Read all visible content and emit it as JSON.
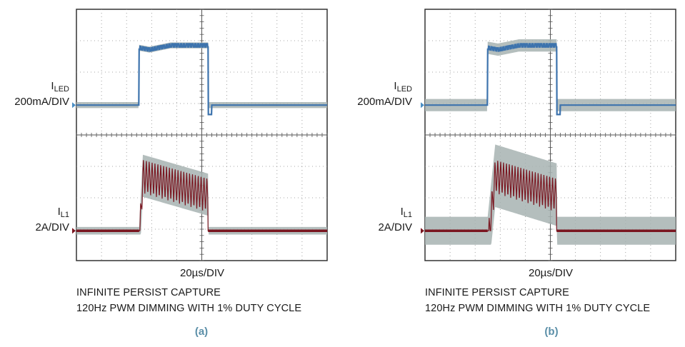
{
  "colors": {
    "led_trace": "#3d73ad",
    "inductor_trace": "#7a1620",
    "persist_envelope": "#a7b3b1",
    "grid": "#8a8a8a",
    "marker": "#4b8fc4"
  },
  "panels": [
    {
      "tag": "(a)",
      "ch1_label": "I",
      "ch1_sub": "LED",
      "ch1_scale": "200mA/DIV",
      "ch2_label": "I",
      "ch2_sub": "L1",
      "ch2_scale": "2A/DIV",
      "timebase": "20µs/DIV",
      "caption_line1": "INFINITE PERSIST CAPTURE",
      "caption_line2": "120Hz PWM DIMMING WITH 1% DUTY CYCLE"
    },
    {
      "tag": "(b)",
      "ch1_label": "I",
      "ch1_sub": "LED",
      "ch1_scale": "200mA/DIV",
      "ch2_label": "I",
      "ch2_sub": "L1",
      "ch2_scale": "2A/DIV",
      "timebase": "20µs/DIV",
      "caption_line1": "INFINITE PERSIST CAPTURE",
      "caption_line2": "120Hz PWM DIMMING WITH 1% DUTY CYCLE"
    }
  ],
  "chart_data": [
    {
      "type": "line",
      "x_unit": "µs",
      "x_range": [
        0,
        200
      ],
      "y_range_div": [
        -4,
        4
      ],
      "grid": true,
      "series": [
        {
          "channel": "I_LED",
          "y_unit": "mA",
          "baseline": 0,
          "on_interval": [
            50,
            105
          ],
          "on_level": [
            340,
            380
          ],
          "ripple_pp": 20,
          "ripple_period": 2.3,
          "envelope_pp": 20
        },
        {
          "channel": "I_L1",
          "y_unit": "A",
          "baseline": 0,
          "on_interval": [
            50,
            105
          ],
          "rise_time": 3,
          "on_peak_start": 4.6,
          "on_peak_end": 3.4,
          "ripple_pp": 2.2,
          "ripple_period": 2.3,
          "envelope_pp": 0.3
        }
      ]
    },
    {
      "type": "line",
      "x_unit": "µs",
      "x_range": [
        0,
        200
      ],
      "y_range_div": [
        -4,
        4
      ],
      "grid": true,
      "series": [
        {
          "channel": "I_LED",
          "y_unit": "mA",
          "baseline": 0,
          "on_interval": [
            50,
            105
          ],
          "on_level": [
            340,
            380
          ],
          "ripple_pp": 20,
          "ripple_period": 2.3,
          "envelope_pp": 60
        },
        {
          "channel": "I_L1",
          "y_unit": "A",
          "baseline": 0,
          "on_interval": [
            50,
            105
          ],
          "rise_time": 6,
          "on_peak_start": 4.6,
          "on_peak_end": 3.4,
          "ripple_pp": 2.2,
          "ripple_period": 2.3,
          "envelope_pp": 1.6
        }
      ]
    }
  ]
}
